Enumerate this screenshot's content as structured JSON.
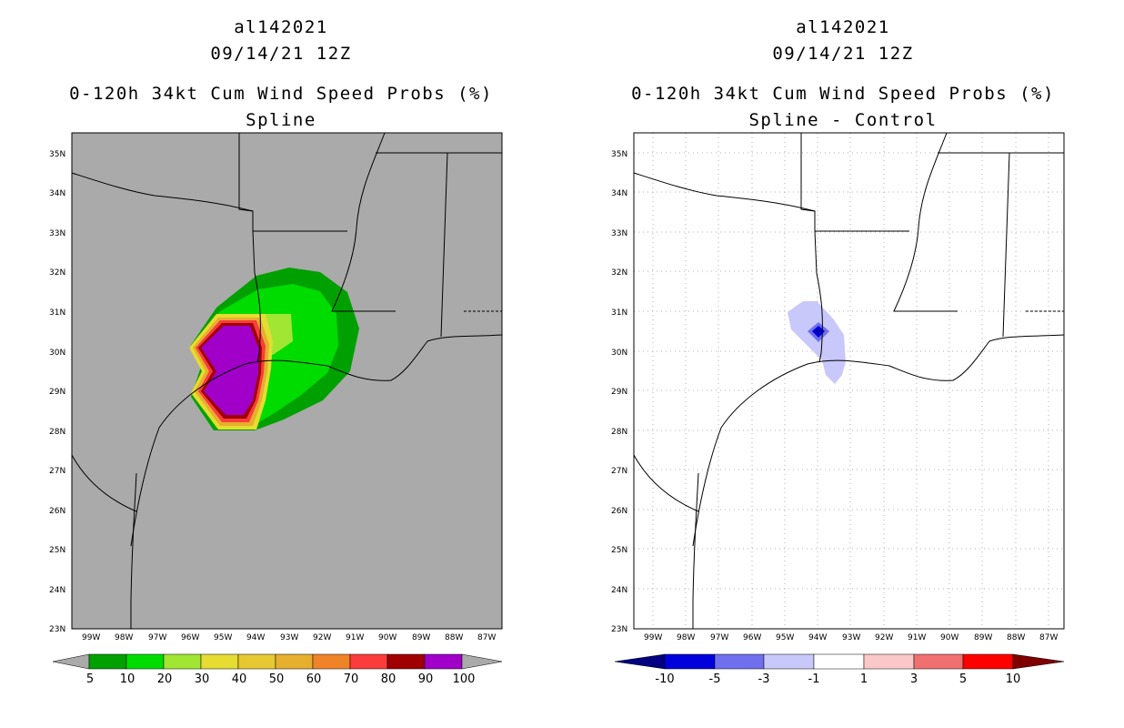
{
  "left": {
    "storm_id": "al142021",
    "date": "09/14/21 12Z",
    "product": "0-120h 34kt Cum Wind Speed Probs (%)",
    "subtitle": "Spline",
    "background_color": "#aaaaaa",
    "colorbar": {
      "labels": [
        "5",
        "10",
        "20",
        "30",
        "40",
        "50",
        "60",
        "70",
        "80",
        "90",
        "100"
      ],
      "colors": [
        "#00a000",
        "#00dc00",
        "#a0e632",
        "#e6dc32",
        "#e6c832",
        "#e6af2d",
        "#f08228",
        "#fa3c3c",
        "#a00000",
        "#a000c8"
      ],
      "under_color": "#aaaaaa",
      "over_color": "#aaaaaa"
    }
  },
  "right": {
    "storm_id": "al142021",
    "date": "09/14/21 12Z",
    "product": "0-120h 34kt Cum Wind Speed Probs (%)",
    "subtitle": "Spline - Control",
    "background_color": "#ffffff",
    "colorbar": {
      "labels": [
        "-10",
        "-5",
        "-3",
        "-1",
        "1",
        "3",
        "5",
        "10"
      ],
      "colors": [
        "#0000dc",
        "#7070ee",
        "#c8c8fa",
        "#ffffff",
        "#fac8c8",
        "#f07070",
        "#ff0000"
      ],
      "under_color": "#000080",
      "over_color": "#800000"
    }
  },
  "axes": {
    "lat_labels": [
      "35N",
      "34N",
      "33N",
      "32N",
      "31N",
      "30N",
      "29N",
      "28N",
      "27N",
      "26N",
      "25N",
      "24N",
      "23N"
    ],
    "lon_labels": [
      "99W",
      "98W",
      "97W",
      "96W",
      "95W",
      "94W",
      "93W",
      "92W",
      "91W",
      "90W",
      "89W",
      "88W",
      "87W"
    ]
  }
}
